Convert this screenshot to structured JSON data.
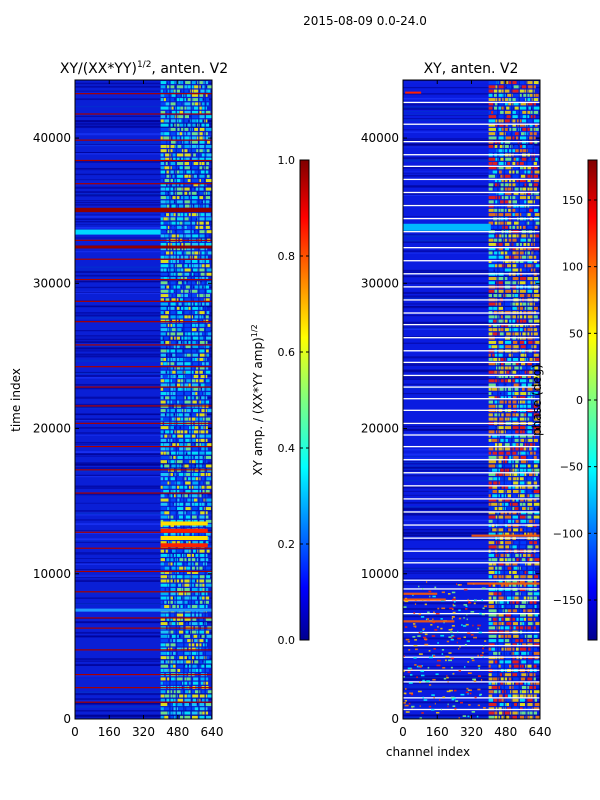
{
  "figure": {
    "suptitle": "2015-08-09 0.0-24.0"
  },
  "chart_data": [
    {
      "type": "heatmap",
      "title_main": "XY/(XX*YY)",
      "title_sup": "1/2",
      "title_suffix": ", anten. V2",
      "xlabel": "",
      "ylabel": "time index",
      "xlim": [
        0,
        640
      ],
      "ylim": [
        0,
        44000
      ],
      "x_ticks": [
        0,
        160,
        320,
        480,
        640
      ],
      "y_ticks": [
        0,
        10000,
        20000,
        30000,
        40000
      ],
      "colorbar": {
        "label_main": "XY amp. / (XX*YY amp)",
        "label_sup": "1/2",
        "range": [
          0.0,
          1.0
        ],
        "ticks": [
          "0.0",
          "0.2",
          "0.4",
          "0.6",
          "0.8",
          "1.0"
        ],
        "tick_values": [
          0.0,
          0.2,
          0.4,
          0.6,
          0.8,
          1.0
        ]
      }
    },
    {
      "type": "heatmap",
      "title_main": "XY, anten. V2",
      "title_sup": "",
      "title_suffix": "",
      "xlabel": "channel index",
      "ylabel": "",
      "xlim": [
        0,
        640
      ],
      "ylim": [
        0,
        44000
      ],
      "x_ticks": [
        0,
        160,
        320,
        480,
        640
      ],
      "y_ticks": [
        0,
        10000,
        20000,
        30000,
        40000
      ],
      "colorbar": {
        "label_main": "phase (deg)",
        "label_sup": "",
        "range": [
          -180,
          180
        ],
        "ticks": [
          "−150",
          "−100",
          "−50",
          "0",
          "50",
          "100",
          "150"
        ],
        "tick_values": [
          -150,
          -100,
          -50,
          0,
          50,
          100,
          150
        ]
      }
    }
  ],
  "colors": {
    "deep_blue": "#00008f",
    "blue": "#0010ff",
    "cyan": "#00ffff",
    "yellow": "#ffff00",
    "red": "#ff0000",
    "dark_red": "#800000"
  }
}
